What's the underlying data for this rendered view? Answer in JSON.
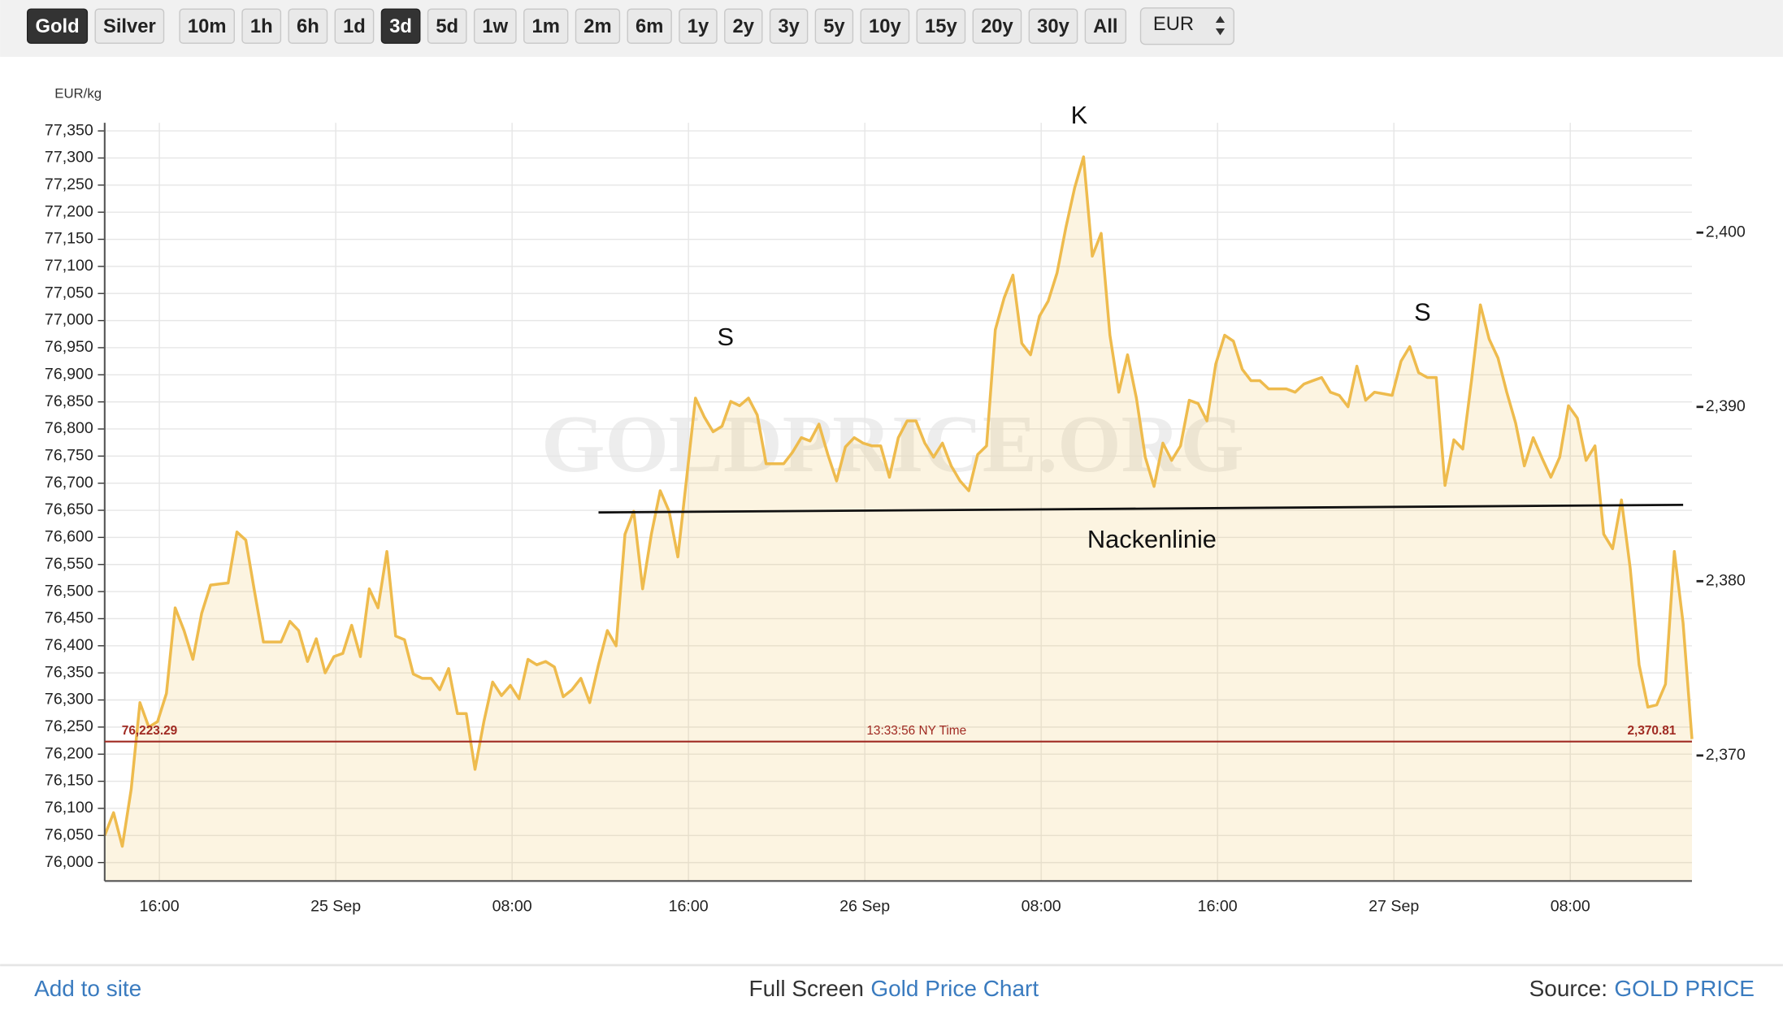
{
  "toolbar": {
    "buttons": [
      "Gold",
      "Silver",
      "10m",
      "1h",
      "6h",
      "1d",
      "3d",
      "5d",
      "1w",
      "1m",
      "2m",
      "6m",
      "1y",
      "2y",
      "3y",
      "5y",
      "10y",
      "15y",
      "20y",
      "30y",
      "All"
    ],
    "active_buttons": [
      0,
      6
    ],
    "currency": "EUR"
  },
  "chart_data": {
    "type": "line",
    "y_label": "EUR/kg",
    "watermark": "GOLDPRICE.ORG",
    "series": [
      {
        "color": "#eebb4d",
        "values": [
          76050,
          76092,
          76030,
          76135,
          76295,
          76250,
          76260,
          76312,
          76470,
          76428,
          76375,
          76460,
          76512,
          76514,
          76516,
          76610,
          76595,
          76500,
          76407,
          76407,
          76407,
          76445,
          76428,
          76371,
          76413,
          76350,
          76380,
          76386,
          76438,
          76380,
          76505,
          76470,
          76574,
          76418,
          76411,
          76348,
          76340,
          76340,
          76319,
          76358,
          76275,
          76275,
          76172,
          76260,
          76333,
          76308,
          76327,
          76302,
          76375,
          76365,
          76371,
          76361,
          76306,
          76319,
          76340,
          76295,
          76365,
          76428,
          76400,
          76606,
          76648,
          76505,
          76606,
          76686,
          76648,
          76564,
          76711,
          76857,
          76822,
          76795,
          76805,
          76851,
          76843,
          76857,
          76826,
          76736,
          76736,
          76736,
          76757,
          76784,
          76778,
          76809,
          76753,
          76704,
          76767,
          76784,
          76774,
          76769,
          76769,
          76711,
          76784,
          76815,
          76815,
          76774,
          76748,
          76774,
          76732,
          76704,
          76686,
          76753,
          76769,
          76983,
          77042,
          77084,
          76958,
          76937,
          77008,
          77036,
          77088,
          77172,
          77245,
          77302,
          77119,
          77161,
          76973,
          76868,
          76937,
          76857,
          76748,
          76694,
          76774,
          76742,
          76769,
          76853,
          76847,
          76815,
          76920,
          76973,
          76962,
          76910,
          76889,
          76889,
          76874,
          76874,
          76874,
          76868,
          76883,
          76889,
          76895,
          76868,
          76862,
          76841,
          76916,
          76853,
          76868,
          76865,
          76862,
          76925,
          76952,
          76904,
          76895,
          76895,
          76696,
          76780,
          76763,
          76889,
          77029,
          76966,
          76931,
          76868,
          76811,
          76732,
          76784,
          76746,
          76711,
          76748,
          76843,
          76820,
          76742,
          76769,
          76606,
          76579,
          76669,
          76543,
          76365,
          76287,
          76291,
          76329,
          76574,
          76442,
          76228
        ]
      }
    ],
    "xlim": [
      0,
      180
    ],
    "xticks": [
      {
        "value": 6.2,
        "label": "16:00"
      },
      {
        "value": 26.2,
        "label": "25 Sep"
      },
      {
        "value": 46.2,
        "label": "08:00"
      },
      {
        "value": 66.2,
        "label": "16:00"
      },
      {
        "value": 86.2,
        "label": "26 Sep"
      },
      {
        "value": 106.2,
        "label": "08:00"
      },
      {
        "value": 126.2,
        "label": "16:00"
      },
      {
        "value": 146.2,
        "label": "27 Sep"
      },
      {
        "value": 166.2,
        "label": "08:00"
      }
    ],
    "ylim": [
      75966,
      77365
    ],
    "yticks": [
      {
        "value": 76000,
        "label": "76,000"
      },
      {
        "value": 76050,
        "label": "76,050"
      },
      {
        "value": 76100,
        "label": "76,100"
      },
      {
        "value": 76150,
        "label": "76,150"
      },
      {
        "value": 76200,
        "label": "76,200"
      },
      {
        "value": 76250,
        "label": "76,250"
      },
      {
        "value": 76300,
        "label": "76,300"
      },
      {
        "value": 76350,
        "label": "76,350"
      },
      {
        "value": 76400,
        "label": "76,400"
      },
      {
        "value": 76450,
        "label": "76,450"
      },
      {
        "value": 76500,
        "label": "76,500"
      },
      {
        "value": 76550,
        "label": "76,550"
      },
      {
        "value": 76600,
        "label": "76,600"
      },
      {
        "value": 76650,
        "label": "76,650"
      },
      {
        "value": 76700,
        "label": "76,700"
      },
      {
        "value": 76750,
        "label": "76,750"
      },
      {
        "value": 76800,
        "label": "76,800"
      },
      {
        "value": 76850,
        "label": "76,850"
      },
      {
        "value": 76900,
        "label": "76,900"
      },
      {
        "value": 76950,
        "label": "76,950"
      },
      {
        "value": 77000,
        "label": "77,000"
      },
      {
        "value": 77050,
        "label": "77,050"
      },
      {
        "value": 77100,
        "label": "77,100"
      },
      {
        "value": 77150,
        "label": "77,150"
      },
      {
        "value": 77200,
        "label": "77,200"
      },
      {
        "value": 77250,
        "label": "77,250"
      },
      {
        "value": 77300,
        "label": "77,300"
      },
      {
        "value": 77350,
        "label": "77,350"
      }
    ],
    "y2lim": [
      2362.8,
      2406.3
    ],
    "y2ticks": [
      {
        "value": 2370,
        "label": "2,370"
      },
      {
        "value": 2380,
        "label": "2,380"
      },
      {
        "value": 2390,
        "label": "2,390"
      },
      {
        "value": 2400,
        "label": "2,400"
      }
    ],
    "grid": true,
    "price_line": {
      "value": 76223.29,
      "label": "76,223.29",
      "time": "13:33:56 NY Time",
      "value2": 2370.81,
      "label2": "2,370.81",
      "color": "#a02a22"
    },
    "neckline": {
      "x": [
        56,
        179
      ],
      "values": [
        76646,
        76660
      ],
      "label": "Nackenlinie"
    },
    "annotations": [
      {
        "text": "S"
      },
      {
        "text": "K"
      },
      {
        "text": "S"
      }
    ]
  },
  "footer": {
    "left": "Add to site",
    "center_prefix": "Full Screen",
    "center_link": "Gold Price Chart",
    "right_prefix": "Source:",
    "right_link": "GOLD PRICE"
  }
}
